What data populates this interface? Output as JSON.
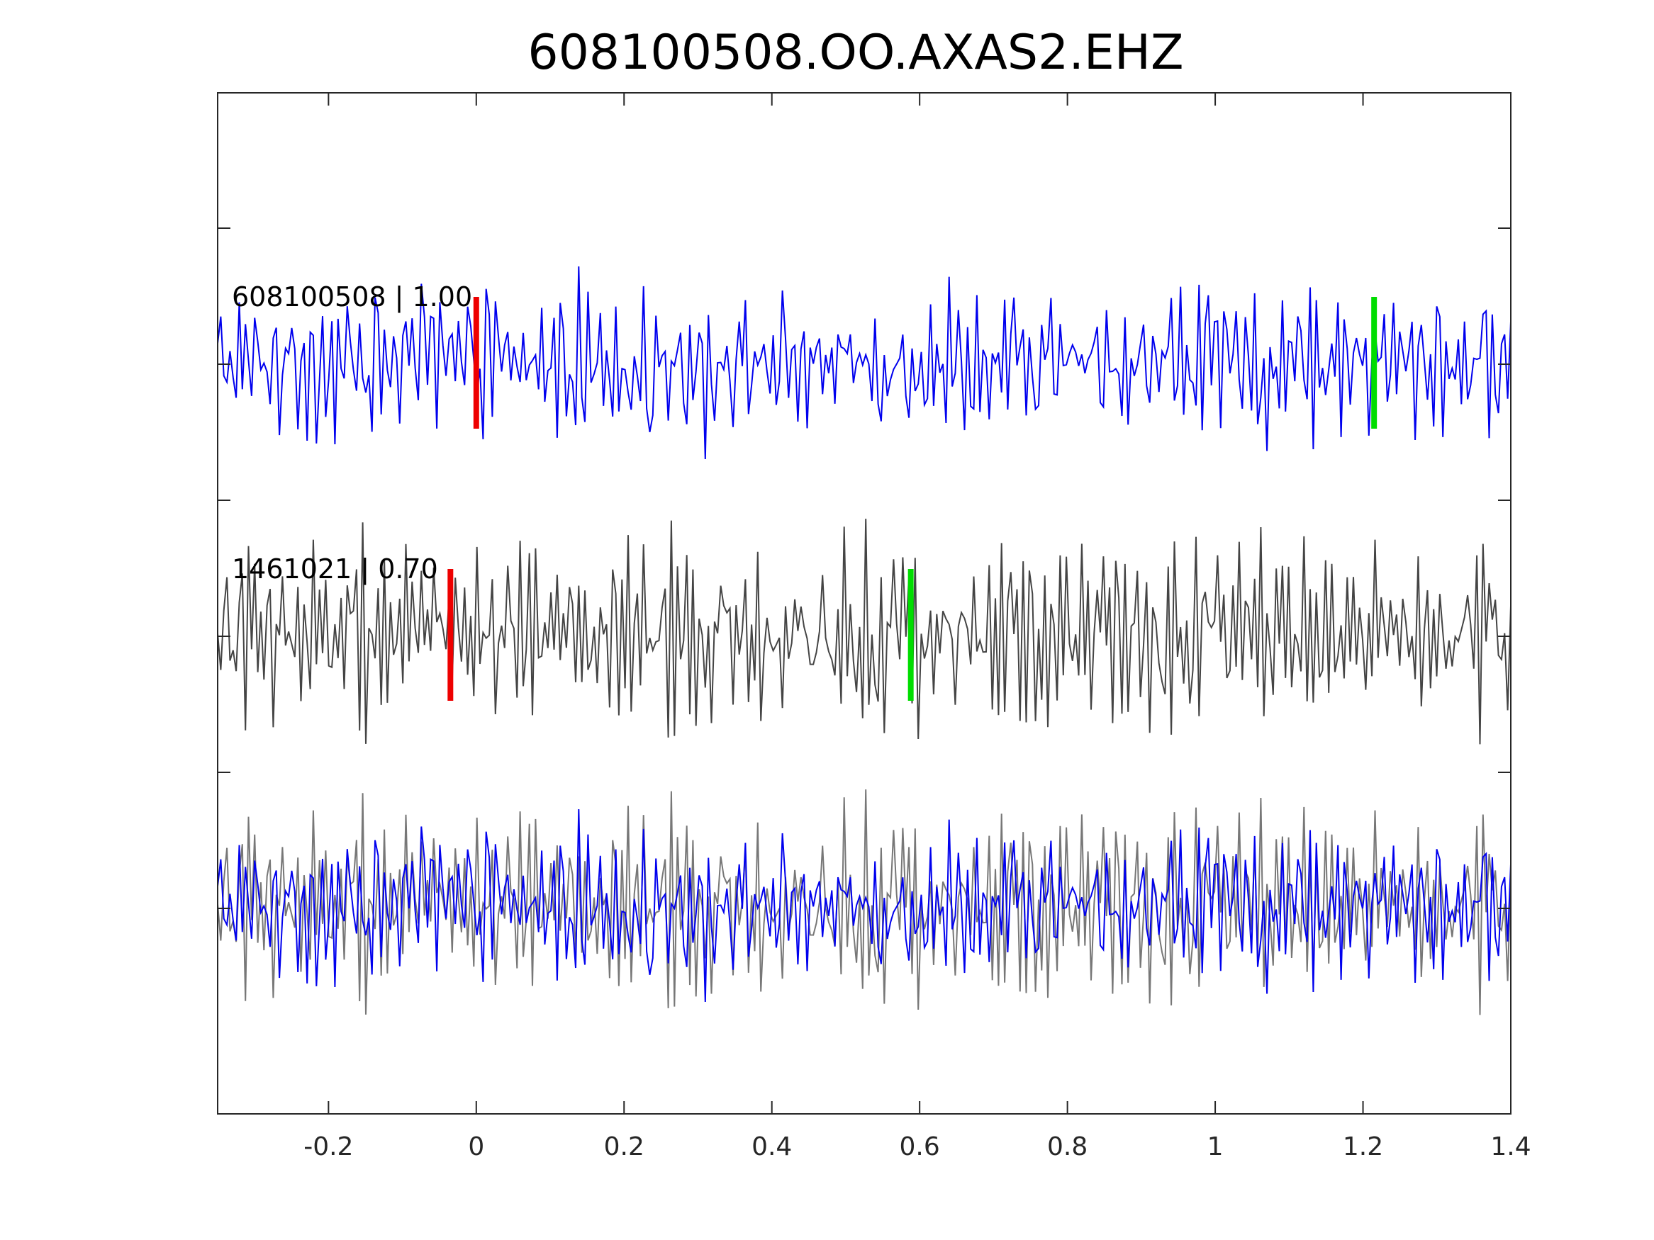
{
  "chart_data": {
    "type": "line",
    "title": "608100508.OO.AXAS2.EHZ",
    "xlabel": "",
    "ylabel": "",
    "xlim": [
      -0.35,
      1.4
    ],
    "x_ticks": [
      -0.2,
      0,
      0.2,
      0.4,
      0.6,
      0.8,
      1,
      1.2,
      1.4
    ],
    "x_tick_labels": [
      "-0.2",
      "0",
      "0.2",
      "0.4",
      "0.6",
      "0.8",
      "1",
      "1.2",
      "1.4"
    ],
    "y_ticks_count": 6,
    "grid": false,
    "colors": {
      "template": "#0000ee",
      "detection": "#444444",
      "detection_overlay": "#777777",
      "p_pick": "#ee0000",
      "s_pick": "#00dd00"
    },
    "traces": [
      {
        "label": "608100508 | 1.00",
        "p_pick": 0.0,
        "s_pick": 1.215
      },
      {
        "label": "1461021 | 0.70",
        "p_pick": -0.035,
        "s_pick": 0.588
      }
    ]
  }
}
